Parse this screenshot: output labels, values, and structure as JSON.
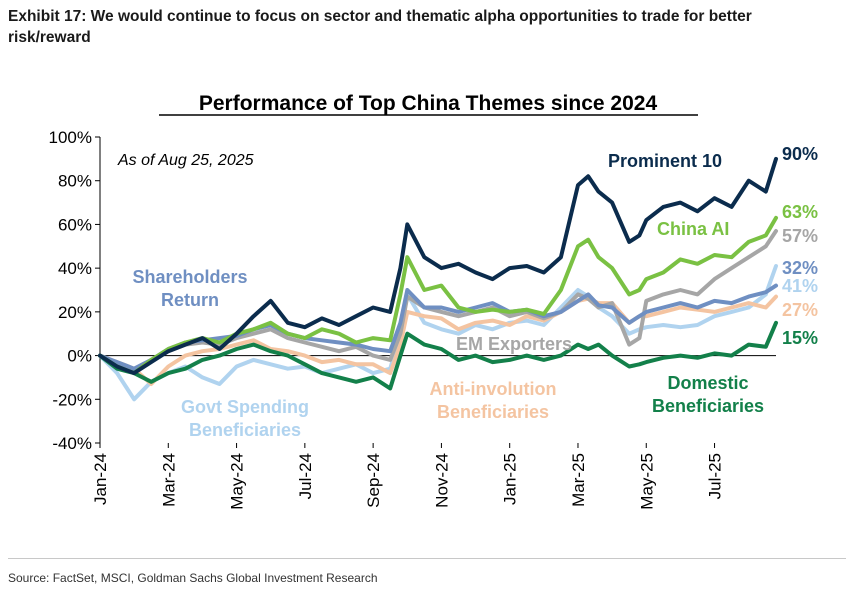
{
  "exhibit": {
    "line1": "Exhibit 17: We would continue to focus on sector and thematic alpha opportunities to trade for better",
    "line2": "risk/reward"
  },
  "source": "Source: FactSet, MSCI, Goldman Sachs Global Investment Research",
  "chart_data": {
    "type": "line",
    "title": "Performance of Top China Themes since 2024",
    "annotation": "As of Aug 25, 2025",
    "xlabel": "",
    "ylabel": "",
    "ylim": [
      -40,
      100
    ],
    "yticks": [
      -40,
      -20,
      0,
      20,
      40,
      60,
      80,
      100
    ],
    "ytick_labels": [
      "-40%",
      "-20%",
      "0%",
      "20%",
      "40%",
      "60%",
      "80%",
      "100%"
    ],
    "x_range": [
      0,
      19.8
    ],
    "x_ticks": [
      0,
      2,
      4,
      6,
      8,
      10,
      12,
      14,
      16,
      18
    ],
    "x_tick_labels": [
      "Jan-24",
      "Mar-24",
      "May-24",
      "Jul-24",
      "Sep-24",
      "Nov-24",
      "Jan-25",
      "Mar-25",
      "May-25",
      "Jul-25"
    ],
    "series": [
      {
        "name": "Prominent 10",
        "label_lines": [
          "Prominent 10"
        ],
        "end_label": "90%",
        "color": "#0b2c4d",
        "x": [
          0,
          0.5,
          1.0,
          1.5,
          2.0,
          2.5,
          3.0,
          3.5,
          4.0,
          4.5,
          5.0,
          5.5,
          6.0,
          6.5,
          7.0,
          7.5,
          8.0,
          8.5,
          8.8,
          9.0,
          9.5,
          10.0,
          10.5,
          11.0,
          11.5,
          12.0,
          12.5,
          13.0,
          13.5,
          14.0,
          14.3,
          14.6,
          15.0,
          15.5,
          15.8,
          16.0,
          16.5,
          17.0,
          17.5,
          18.0,
          18.5,
          19.0,
          19.5,
          19.8
        ],
        "values": [
          0,
          -5,
          -8,
          -3,
          2,
          5,
          8,
          3,
          10,
          18,
          25,
          15,
          13,
          17,
          14,
          18,
          22,
          20,
          40,
          60,
          45,
          40,
          42,
          38,
          35,
          40,
          41,
          38,
          45,
          78,
          82,
          75,
          70,
          52,
          55,
          62,
          68,
          70,
          66,
          72,
          68,
          80,
          75,
          90
        ]
      },
      {
        "name": "China AI",
        "label_lines": [
          "China AI"
        ],
        "end_label": "63%",
        "color": "#7ac143",
        "x": [
          0,
          0.5,
          1.0,
          1.5,
          2.0,
          2.5,
          3.0,
          3.5,
          4.0,
          4.5,
          5.0,
          5.5,
          6.0,
          6.5,
          7.0,
          7.5,
          8.0,
          8.5,
          8.8,
          9.0,
          9.5,
          10.0,
          10.5,
          11.0,
          11.5,
          12.0,
          12.5,
          13.0,
          13.5,
          14.0,
          14.3,
          14.6,
          15.0,
          15.5,
          15.8,
          16.0,
          16.5,
          17.0,
          17.5,
          18.0,
          18.5,
          19.0,
          19.5,
          19.8
        ],
        "values": [
          0,
          -5,
          -8,
          -2,
          3,
          6,
          8,
          6,
          10,
          12,
          15,
          10,
          8,
          12,
          10,
          6,
          8,
          7,
          28,
          45,
          30,
          32,
          22,
          20,
          21,
          20,
          21,
          19,
          30,
          50,
          53,
          45,
          40,
          28,
          30,
          35,
          38,
          44,
          42,
          46,
          45,
          52,
          55,
          63
        ]
      },
      {
        "name": "EM Exporters",
        "label_lines": [
          "EM Exporters"
        ],
        "end_label": "57%",
        "color": "#a6a6a6",
        "x": [
          0,
          0.5,
          1.0,
          1.5,
          2.0,
          2.5,
          3.0,
          3.5,
          4.0,
          4.5,
          5.0,
          5.5,
          6.0,
          6.5,
          7.0,
          7.5,
          8.0,
          8.5,
          8.8,
          9.0,
          9.5,
          10.0,
          10.5,
          11.0,
          11.5,
          12.0,
          12.5,
          13.0,
          13.5,
          14.0,
          14.3,
          14.6,
          15.0,
          15.5,
          15.8,
          16.0,
          16.5,
          17.0,
          17.5,
          18.0,
          18.5,
          19.0,
          19.5,
          19.8
        ],
        "values": [
          0,
          -4,
          -7,
          -2,
          2,
          5,
          6,
          5,
          8,
          10,
          12,
          8,
          6,
          4,
          2,
          4,
          0,
          -2,
          10,
          27,
          22,
          20,
          18,
          20,
          22,
          18,
          20,
          17,
          20,
          28,
          26,
          22,
          24,
          5,
          8,
          25,
          28,
          30,
          28,
          35,
          40,
          45,
          50,
          57
        ]
      },
      {
        "name": "Shareholders Return",
        "label_lines": [
          "Shareholders",
          "Return"
        ],
        "end_label": "32%",
        "color": "#6f8fc2",
        "x": [
          0,
          0.5,
          1.0,
          1.5,
          2.0,
          2.5,
          3.0,
          3.5,
          4.0,
          4.5,
          5.0,
          5.5,
          6.0,
          6.5,
          7.0,
          7.5,
          8.0,
          8.5,
          8.8,
          9.0,
          9.5,
          10.0,
          10.5,
          11.0,
          11.5,
          12.0,
          12.5,
          13.0,
          13.5,
          14.0,
          14.3,
          14.6,
          15.0,
          15.5,
          15.8,
          16.0,
          16.5,
          17.0,
          17.5,
          18.0,
          18.5,
          19.0,
          19.5,
          19.8
        ],
        "values": [
          0,
          -3,
          -6,
          -2,
          3,
          6,
          7,
          8,
          9,
          12,
          14,
          10,
          8,
          7,
          6,
          5,
          3,
          2,
          15,
          30,
          22,
          22,
          20,
          22,
          24,
          20,
          21,
          18,
          20,
          25,
          28,
          23,
          22,
          15,
          18,
          20,
          22,
          24,
          22,
          25,
          24,
          27,
          29,
          32
        ]
      },
      {
        "name": "Govt Spending Beneficiaries",
        "label_lines": [
          "Govt Spending",
          "Beneficiaries"
        ],
        "end_label": "41%",
        "color": "#b0d3ef",
        "x": [
          0,
          0.5,
          1.0,
          1.5,
          2.0,
          2.5,
          3.0,
          3.5,
          4.0,
          4.5,
          5.0,
          5.5,
          6.0,
          6.5,
          7.0,
          7.5,
          8.0,
          8.5,
          8.8,
          9.0,
          9.5,
          10.0,
          10.5,
          11.0,
          11.5,
          12.0,
          12.5,
          13.0,
          13.5,
          14.0,
          14.3,
          14.6,
          15.0,
          15.5,
          15.8,
          16.0,
          16.5,
          17.0,
          17.5,
          18.0,
          18.5,
          19.0,
          19.5,
          19.8
        ],
        "values": [
          0,
          -8,
          -20,
          -12,
          -8,
          -5,
          -10,
          -13,
          -5,
          -2,
          -4,
          -6,
          -5,
          -8,
          -6,
          -4,
          -8,
          -6,
          10,
          28,
          15,
          12,
          10,
          14,
          12,
          15,
          16,
          14,
          22,
          30,
          27,
          22,
          18,
          10,
          12,
          13,
          14,
          13,
          14,
          18,
          20,
          22,
          28,
          41
        ]
      },
      {
        "name": "Anti-involution Beneficiaries",
        "label_lines": [
          "Anti-involution",
          "Beneficiaries"
        ],
        "end_label": "27%",
        "color": "#f4c4a1",
        "x": [
          0,
          0.5,
          1.0,
          1.5,
          2.0,
          2.5,
          3.0,
          3.5,
          4.0,
          4.5,
          5.0,
          5.5,
          6.0,
          6.5,
          7.0,
          7.5,
          8.0,
          8.5,
          8.8,
          9.0,
          9.5,
          10.0,
          10.5,
          11.0,
          11.5,
          12.0,
          12.5,
          13.0,
          13.5,
          14.0,
          14.3,
          14.6,
          15.0,
          15.5,
          15.8,
          16.0,
          16.5,
          17.0,
          17.5,
          18.0,
          18.5,
          19.0,
          19.5,
          19.8
        ],
        "values": [
          0,
          -3,
          -6,
          -13,
          -5,
          0,
          2,
          3,
          5,
          7,
          3,
          2,
          0,
          -3,
          -2,
          -4,
          -4,
          -8,
          5,
          20,
          18,
          17,
          12,
          15,
          16,
          14,
          18,
          16,
          20,
          25,
          26,
          24,
          24,
          15,
          18,
          18,
          20,
          22,
          21,
          20,
          22,
          24,
          22,
          27
        ]
      },
      {
        "name": "Domestic Beneficiaries",
        "label_lines": [
          "Domestic",
          "Beneficiaries"
        ],
        "end_label": "15%",
        "color": "#13804a",
        "x": [
          0,
          0.5,
          1.0,
          1.5,
          2.0,
          2.5,
          3.0,
          3.5,
          4.0,
          4.5,
          5.0,
          5.5,
          6.0,
          6.5,
          7.0,
          7.5,
          8.0,
          8.5,
          8.8,
          9.0,
          9.5,
          10.0,
          10.5,
          11.0,
          11.5,
          12.0,
          12.5,
          13.0,
          13.5,
          14.0,
          14.3,
          14.6,
          15.0,
          15.5,
          15.8,
          16.0,
          16.5,
          17.0,
          17.5,
          18.0,
          18.5,
          19.0,
          19.5,
          19.8
        ],
        "values": [
          0,
          -6,
          -8,
          -12,
          -8,
          -6,
          -2,
          0,
          3,
          5,
          2,
          0,
          -4,
          -8,
          -10,
          -12,
          -10,
          -15,
          0,
          10,
          5,
          3,
          -2,
          0,
          -3,
          -2,
          0,
          -2,
          0,
          5,
          3,
          5,
          0,
          -5,
          -4,
          -3,
          -1,
          0,
          -1,
          1,
          0,
          5,
          4,
          15
        ]
      }
    ]
  }
}
